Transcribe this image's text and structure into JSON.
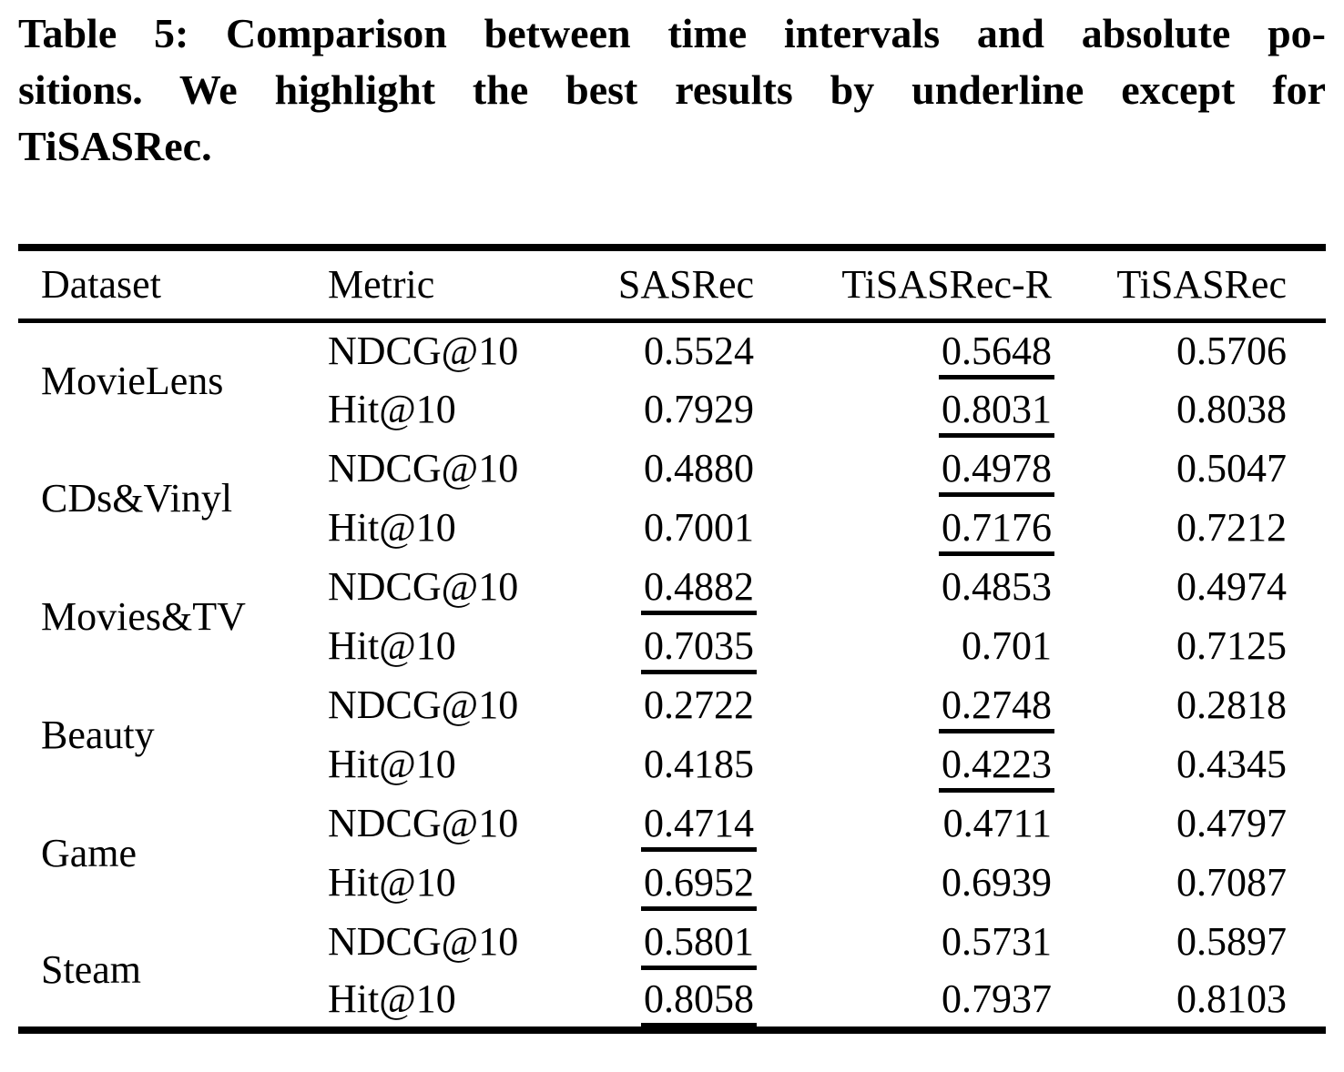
{
  "caption": {
    "lines": [
      "Table 5: Comparison between time intervals and absolute po-",
      "sitions. We highlight the best results by underline except for",
      "TiSASRec."
    ]
  },
  "table": {
    "headers": [
      "Dataset",
      "Metric",
      "SASRec",
      "TiSASRec-R",
      "TiSASRec"
    ],
    "underline_note": "underline marks best result excluding TiSASRec column",
    "groups": [
      {
        "dataset": "MovieLens",
        "rows": [
          {
            "metric": "NDCG@10",
            "sasrec": "0.5524",
            "tisasrec_r": "0.5648",
            "tisasrec": "0.5706",
            "underline": "tisasrec_r"
          },
          {
            "metric": "Hit@10",
            "sasrec": "0.7929",
            "tisasrec_r": "0.8031",
            "tisasrec": "0.8038",
            "underline": "tisasrec_r"
          }
        ]
      },
      {
        "dataset": "CDs&Vinyl",
        "rows": [
          {
            "metric": "NDCG@10",
            "sasrec": "0.4880",
            "tisasrec_r": "0.4978",
            "tisasrec": "0.5047",
            "underline": "tisasrec_r"
          },
          {
            "metric": "Hit@10",
            "sasrec": "0.7001",
            "tisasrec_r": "0.7176",
            "tisasrec": "0.7212",
            "underline": "tisasrec_r"
          }
        ]
      },
      {
        "dataset": "Movies&TV",
        "rows": [
          {
            "metric": "NDCG@10",
            "sasrec": "0.4882",
            "tisasrec_r": "0.4853",
            "tisasrec": "0.4974",
            "underline": "sasrec"
          },
          {
            "metric": "Hit@10",
            "sasrec": "0.7035",
            "tisasrec_r": "0.701",
            "tisasrec": "0.7125",
            "underline": "sasrec"
          }
        ]
      },
      {
        "dataset": "Beauty",
        "rows": [
          {
            "metric": "NDCG@10",
            "sasrec": "0.2722",
            "tisasrec_r": "0.2748",
            "tisasrec": "0.2818",
            "underline": "tisasrec_r"
          },
          {
            "metric": "Hit@10",
            "sasrec": "0.4185",
            "tisasrec_r": "0.4223",
            "tisasrec": "0.4345",
            "underline": "tisasrec_r"
          }
        ]
      },
      {
        "dataset": "Game",
        "rows": [
          {
            "metric": "NDCG@10",
            "sasrec": "0.4714",
            "tisasrec_r": "0.4711",
            "tisasrec": "0.4797",
            "underline": "sasrec"
          },
          {
            "metric": "Hit@10",
            "sasrec": "0.6952",
            "tisasrec_r": "0.6939",
            "tisasrec": "0.7087",
            "underline": "sasrec"
          }
        ]
      },
      {
        "dataset": "Steam",
        "rows": [
          {
            "metric": "NDCG@10",
            "sasrec": "0.5801",
            "tisasrec_r": "0.5731",
            "tisasrec": "0.5897",
            "underline": "sasrec"
          },
          {
            "metric": "Hit@10",
            "sasrec": "0.8058",
            "tisasrec_r": "0.7937",
            "tisasrec": "0.8103",
            "underline": "sasrec"
          }
        ]
      }
    ]
  },
  "colors": {
    "text": "#000000",
    "background": "#ffffff",
    "rule": "#000000"
  }
}
